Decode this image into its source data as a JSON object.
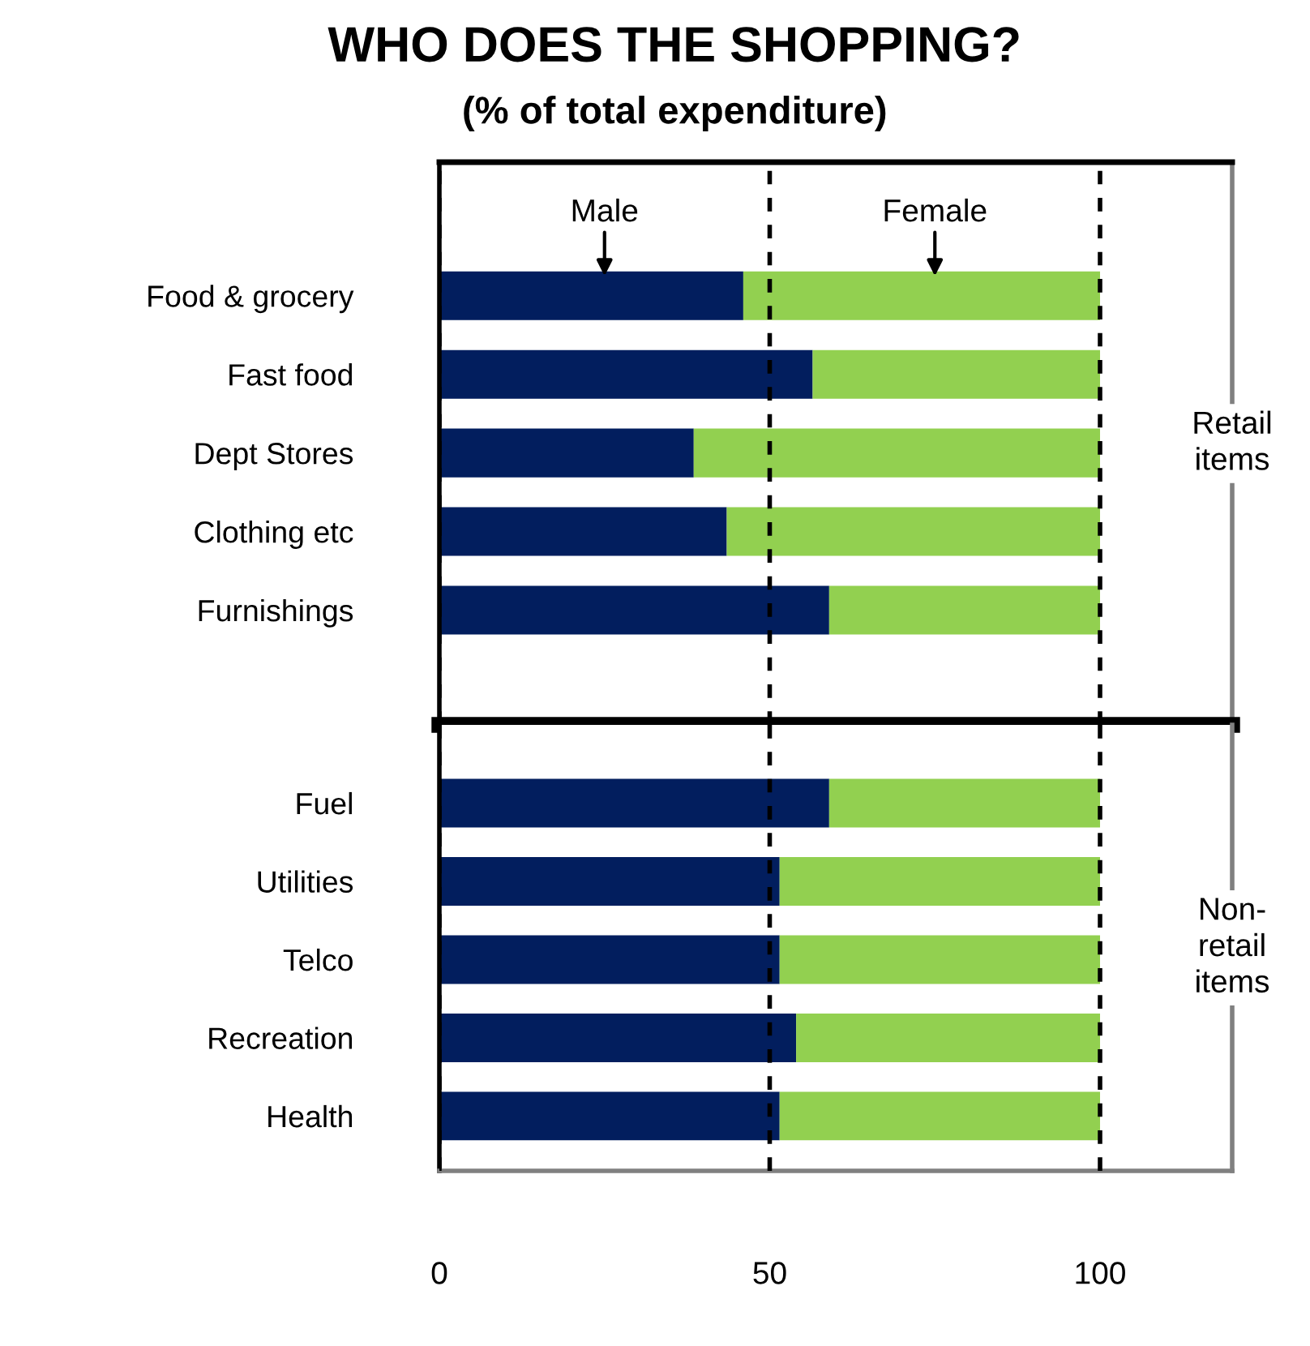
{
  "chart_data": [
    {
      "type": "bar",
      "orientation": "horizontal",
      "stacked": true,
      "title": "WHO DOES THE SHOPPING?",
      "subtitle": "(% of total expenditure)",
      "categories": [
        "Food & grocery",
        "Fast food",
        "Dept Stores",
        "Clothing etc",
        "Furnishings"
      ],
      "series": [
        {
          "name": "Male",
          "color": "#021e5e",
          "values": [
            46,
            56.5,
            38.5,
            43.5,
            59
          ]
        },
        {
          "name": "Female",
          "color": "#92d050",
          "values": [
            54,
            43.5,
            61.5,
            56.5,
            41
          ]
        }
      ],
      "xlim": [
        0,
        120
      ],
      "xticks": [
        0,
        50,
        100
      ],
      "grid": "x",
      "line_style": "dashed",
      "tick_labels": "y",
      "annotations": [
        "Retail\nitems"
      ]
    },
    {
      "type": "bar",
      "orientation": "horizontal",
      "stacked": true,
      "categories": [
        "Fuel",
        "Utilities",
        "Telco",
        "Recreation",
        "Health"
      ],
      "series": [
        {
          "color": "#021e5e",
          "values": [
            59,
            51.5,
            51.5,
            54,
            51.5
          ]
        },
        {
          "color": "#92d050",
          "values": [
            41,
            48.5,
            48.5,
            46,
            48.5
          ]
        }
      ],
      "xlim": [
        0,
        120
      ],
      "xticks": [
        0,
        50,
        100
      ],
      "grid": "x",
      "line_style": "dashed",
      "annotations": [
        "Non-\nretail\nitems"
      ]
    }
  ]
}
